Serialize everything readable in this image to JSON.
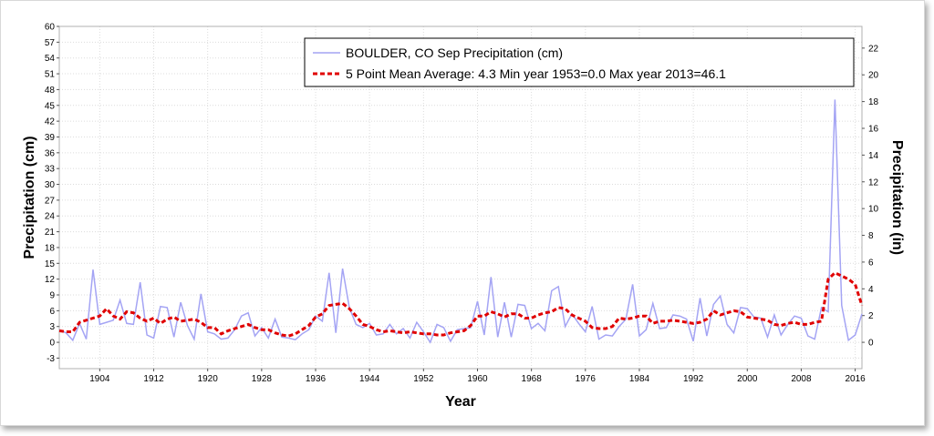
{
  "chart_data": {
    "type": "line",
    "xlabel": "Year",
    "ylabel": "Precipitation (cm)",
    "ylabel_right": "Precipitation (in)",
    "xlim": [
      1898,
      2017
    ],
    "ylim": [
      -5,
      60
    ],
    "ylim_right_in": [
      -1.9685,
      23.622
    ],
    "y_ticks": [
      -3,
      0,
      3,
      6,
      9,
      12,
      15,
      18,
      21,
      24,
      27,
      30,
      33,
      36,
      39,
      42,
      45,
      48,
      51,
      54,
      57,
      60
    ],
    "y_right_ticks": [
      0,
      2,
      4,
      6,
      8,
      10,
      12,
      14,
      16,
      18,
      20,
      22
    ],
    "x_ticks": [
      1904,
      1912,
      1920,
      1928,
      1936,
      1944,
      1952,
      1960,
      1968,
      1976,
      1984,
      1992,
      2000,
      2008,
      2016
    ],
    "grid": true,
    "legend_position": "top-right",
    "legend": [
      "BOULDER, CO  Sep  Precipitation (cm)",
      "5 Point Mean  Average: 4.3  Min year 1953=0.0  Max year 2013=46.1"
    ],
    "colors": {
      "series": "#a4a4f4",
      "mean": "#e00000"
    },
    "series": [
      {
        "name": "BOULDER, CO  Sep  Precipitation (cm)",
        "x": [
          1898,
          1899,
          1900,
          1901,
          1902,
          1903,
          1904,
          1905,
          1906,
          1907,
          1908,
          1909,
          1910,
          1911,
          1912,
          1913,
          1914,
          1915,
          1916,
          1917,
          1918,
          1919,
          1920,
          1921,
          1922,
          1923,
          1924,
          1925,
          1926,
          1927,
          1928,
          1929,
          1930,
          1931,
          1932,
          1933,
          1934,
          1935,
          1936,
          1937,
          1938,
          1939,
          1940,
          1941,
          1942,
          1943,
          1944,
          1945,
          1946,
          1947,
          1948,
          1949,
          1950,
          1951,
          1952,
          1953,
          1954,
          1955,
          1956,
          1957,
          1958,
          1959,
          1960,
          1961,
          1962,
          1963,
          1964,
          1965,
          1966,
          1967,
          1968,
          1969,
          1970,
          1971,
          1972,
          1973,
          1974,
          1975,
          1976,
          1977,
          1978,
          1979,
          1980,
          1981,
          1982,
          1983,
          1984,
          1985,
          1986,
          1987,
          1988,
          1989,
          1990,
          1991,
          1992,
          1993,
          1994,
          1995,
          1996,
          1997,
          1998,
          1999,
          2000,
          2001,
          2002,
          2003,
          2004,
          2005,
          2006,
          2007,
          2008,
          2009,
          2010,
          2011,
          2012,
          2013,
          2014,
          2015,
          2016,
          2017
        ],
        "values": [
          2.4,
          1.8,
          0.4,
          3.6,
          0.6,
          13.8,
          3.4,
          3.8,
          4.2,
          8.0,
          3.6,
          3.4,
          11.4,
          1.4,
          0.8,
          6.8,
          6.6,
          1.0,
          7.6,
          3.2,
          0.6,
          9.2,
          2.0,
          1.6,
          0.6,
          0.8,
          2.4,
          5.0,
          5.6,
          1.2,
          2.8,
          0.8,
          4.4,
          1.0,
          0.8,
          0.5,
          1.6,
          2.4,
          5.0,
          4.0,
          13.2,
          1.8,
          14.0,
          6.6,
          3.4,
          2.8,
          3.6,
          1.4,
          1.6,
          3.4,
          1.6,
          2.6,
          0.8,
          3.8,
          2.0,
          0.0,
          3.4,
          2.8,
          0.2,
          2.4,
          2.6,
          2.8,
          7.8,
          1.4,
          12.4,
          1.0,
          7.6,
          1.0,
          7.2,
          7.0,
          2.6,
          3.6,
          2.2,
          9.8,
          10.6,
          3.0,
          5.4,
          3.6,
          2.0,
          6.8,
          0.6,
          1.4,
          1.2,
          3.0,
          4.4,
          11.0,
          1.2,
          2.4,
          7.4,
          2.6,
          2.8,
          5.2,
          5.0,
          4.4,
          0.2,
          8.4,
          1.2,
          7.2,
          8.8,
          3.4,
          1.8,
          6.6,
          6.4,
          4.8,
          4.6,
          1.0,
          5.2,
          1.4,
          3.4,
          5.0,
          4.6,
          1.2,
          0.6,
          6.6,
          5.8,
          46.1,
          7.0,
          0.4,
          1.4,
          5.4
        ]
      },
      {
        "name": "5 Point Mean  Average: 4.3  Min year 1953=0.0  Max year 2013=46.1",
        "x": [
          1898,
          1899,
          1900,
          1901,
          1902,
          1903,
          1904,
          1905,
          1906,
          1907,
          1908,
          1909,
          1910,
          1911,
          1912,
          1913,
          1914,
          1915,
          1916,
          1917,
          1918,
          1919,
          1920,
          1921,
          1922,
          1923,
          1924,
          1925,
          1926,
          1927,
          1928,
          1929,
          1930,
          1931,
          1932,
          1933,
          1934,
          1935,
          1936,
          1937,
          1938,
          1939,
          1940,
          1941,
          1942,
          1943,
          1944,
          1945,
          1946,
          1947,
          1948,
          1949,
          1950,
          1951,
          1952,
          1953,
          1954,
          1955,
          1956,
          1957,
          1958,
          1959,
          1960,
          1961,
          1962,
          1963,
          1964,
          1965,
          1966,
          1967,
          1968,
          1969,
          1970,
          1971,
          1972,
          1973,
          1974,
          1975,
          1976,
          1977,
          1978,
          1979,
          1980,
          1981,
          1982,
          1983,
          1984,
          1985,
          1986,
          1987,
          1988,
          1989,
          1990,
          1991,
          1992,
          1993,
          1994,
          1995,
          1996,
          1997,
          1998,
          1999,
          2000,
          2001,
          2002,
          2003,
          2004,
          2005,
          2006,
          2007,
          2008,
          2009,
          2010,
          2011,
          2012,
          2013,
          2014,
          2015,
          2016,
          2017
        ],
        "values": [
          2.2,
          2.0,
          2.0,
          3.8,
          4.2,
          4.6,
          5.0,
          6.4,
          5.0,
          4.4,
          5.8,
          5.6,
          4.6,
          4.0,
          4.6,
          3.6,
          4.4,
          4.8,
          4.0,
          4.2,
          4.4,
          3.8,
          2.8,
          2.8,
          1.6,
          2.2,
          2.6,
          3.0,
          3.4,
          2.8,
          2.4,
          2.4,
          1.8,
          1.4,
          1.2,
          1.6,
          2.4,
          3.2,
          4.8,
          5.4,
          7.0,
          7.2,
          7.4,
          6.4,
          5.0,
          3.4,
          3.0,
          2.4,
          2.0,
          2.2,
          2.0,
          1.8,
          2.0,
          1.8,
          1.6,
          1.6,
          1.4,
          1.4,
          1.8,
          2.0,
          2.2,
          3.2,
          5.0,
          5.0,
          5.8,
          5.4,
          4.8,
          5.4,
          5.4,
          4.6,
          4.6,
          5.2,
          5.6,
          5.8,
          6.6,
          6.4,
          5.2,
          4.6,
          4.0,
          2.8,
          2.6,
          2.6,
          3.0,
          4.6,
          4.4,
          4.6,
          5.0,
          5.0,
          3.6,
          4.0,
          4.0,
          4.2,
          4.0,
          3.8,
          3.6,
          3.8,
          4.4,
          6.0,
          5.2,
          5.6,
          6.0,
          5.8,
          4.8,
          4.6,
          4.4,
          4.2,
          3.4,
          3.2,
          3.6,
          3.8,
          3.4,
          3.4,
          3.8,
          4.0,
          12.0,
          13.2,
          12.6,
          12.0,
          11.0,
          7.0
        ]
      }
    ]
  }
}
